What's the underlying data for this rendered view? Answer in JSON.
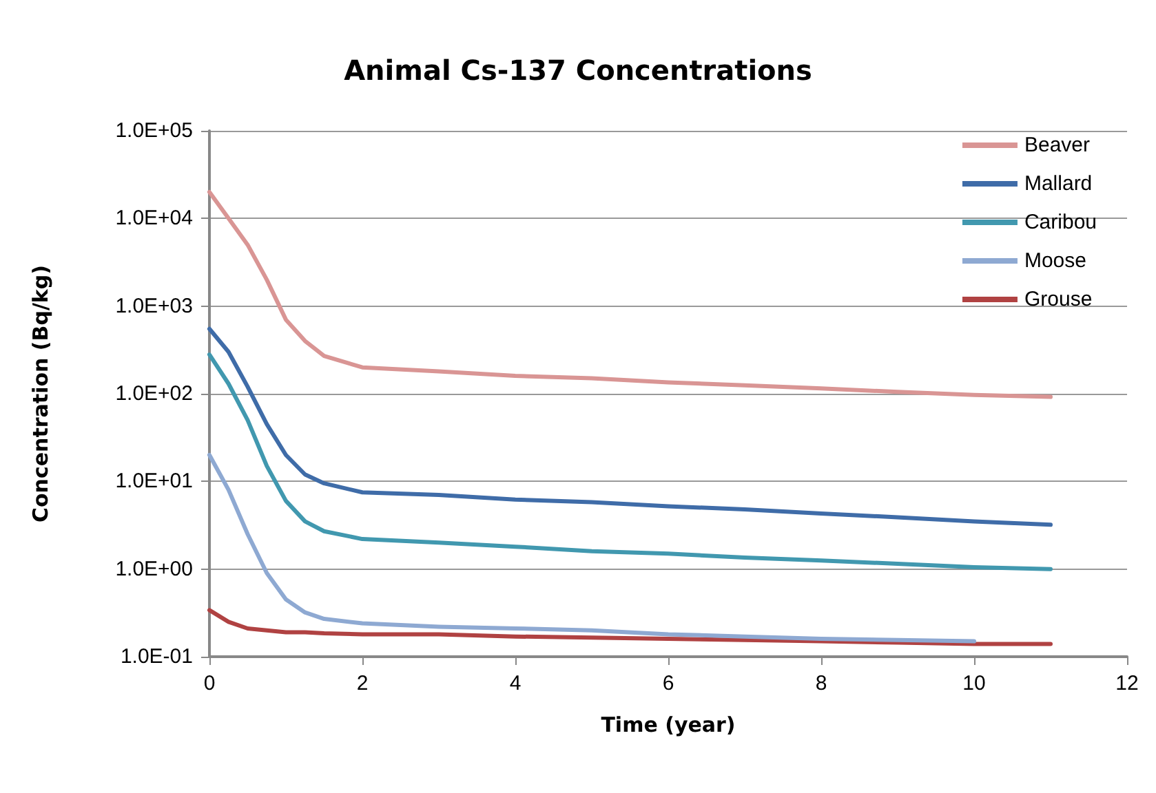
{
  "chart_data": {
    "type": "line",
    "title": "Animal Cs-137 Concentrations",
    "xlabel": "Time (year)",
    "ylabel": "Concentration (Bq/kg)",
    "x": [
      0,
      0.25,
      0.5,
      0.75,
      1,
      1.25,
      1.5,
      2,
      3,
      4,
      5,
      6,
      7,
      8,
      9,
      10,
      11
    ],
    "series": [
      {
        "name": "Beaver",
        "color": "#d99594",
        "values": [
          20000,
          10000,
          5000,
          2000,
          700,
          400,
          270,
          200,
          180,
          160,
          150,
          135,
          125,
          115,
          105,
          97,
          92
        ]
      },
      {
        "name": "Mallard",
        "color": "#3f6ca8",
        "values": [
          550,
          300,
          120,
          45,
          20,
          12,
          9.5,
          7.5,
          7,
          6.2,
          5.8,
          5.2,
          4.8,
          4.3,
          3.9,
          3.5,
          3.2
        ]
      },
      {
        "name": "Caribou",
        "color": "#4198af",
        "values": [
          280,
          130,
          50,
          15,
          6,
          3.5,
          2.7,
          2.2,
          2,
          1.8,
          1.6,
          1.5,
          1.35,
          1.25,
          1.15,
          1.05,
          1
        ]
      },
      {
        "name": "Moose",
        "color": "#8ea9d2",
        "values": [
          20,
          8,
          2.5,
          0.9,
          0.45,
          0.32,
          0.27,
          0.24,
          0.22,
          0.21,
          0.2,
          0.18,
          0.17,
          0.16,
          0.155,
          0.15,
          null
        ]
      },
      {
        "name": "Grouse",
        "color": "#b04242",
        "values": [
          0.34,
          0.25,
          0.21,
          0.2,
          0.19,
          0.19,
          0.185,
          0.18,
          0.18,
          0.17,
          0.165,
          0.16,
          0.155,
          0.15,
          0.145,
          0.14,
          0.14
        ]
      }
    ],
    "xlim": [
      0,
      12
    ],
    "xticks": [
      0,
      2,
      4,
      6,
      8,
      10,
      12
    ],
    "ylim": [
      0.1,
      100000
    ],
    "yticks": [
      {
        "value": 0.1,
        "label": "1.0E-01"
      },
      {
        "value": 1,
        "label": "1.0E+00"
      },
      {
        "value": 10,
        "label": "1.0E+01"
      },
      {
        "value": 100,
        "label": "1.0E+02"
      },
      {
        "value": 1000,
        "label": "1.0E+03"
      },
      {
        "value": 10000,
        "label": "1.0E+04"
      },
      {
        "value": 100000,
        "label": "1.0E+05"
      }
    ],
    "log": "y",
    "grid": "y",
    "legend": "top right",
    "marker": "none",
    "line_style": "solid"
  }
}
